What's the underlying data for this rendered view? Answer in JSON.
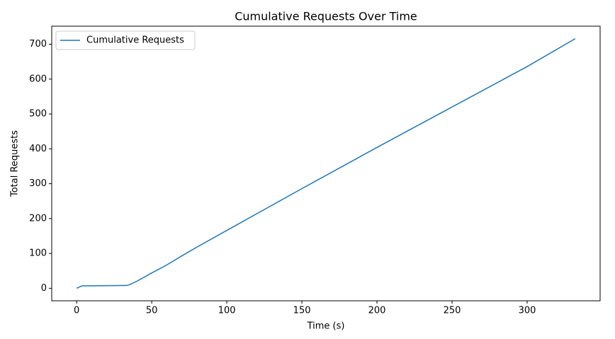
{
  "chart_data": {
    "type": "line",
    "title": "Cumulative Requests Over Time",
    "x_label": "Time (s)",
    "y_label": "Total Requests",
    "x": [
      0,
      3,
      4,
      33,
      35,
      40,
      50,
      60,
      70,
      80,
      100,
      150,
      200,
      250,
      300,
      332
    ],
    "series": [
      {
        "name": "Cumulative Requests",
        "color": "#1f77b4",
        "values": [
          0,
          6,
          7,
          8,
          10,
          20,
          44,
          67,
          93,
          118,
          166,
          286,
          404,
          520,
          636,
          716
        ]
      }
    ],
    "xlim": [
      -16.6,
      348.6
    ],
    "xticks": [
      0,
      50,
      100,
      150,
      200,
      250,
      300
    ],
    "ylim": [
      -35.8,
      751.8
    ],
    "yticks": [
      0,
      100,
      200,
      300,
      400,
      500,
      600,
      700
    ],
    "grid": false,
    "legend": "upper left"
  }
}
